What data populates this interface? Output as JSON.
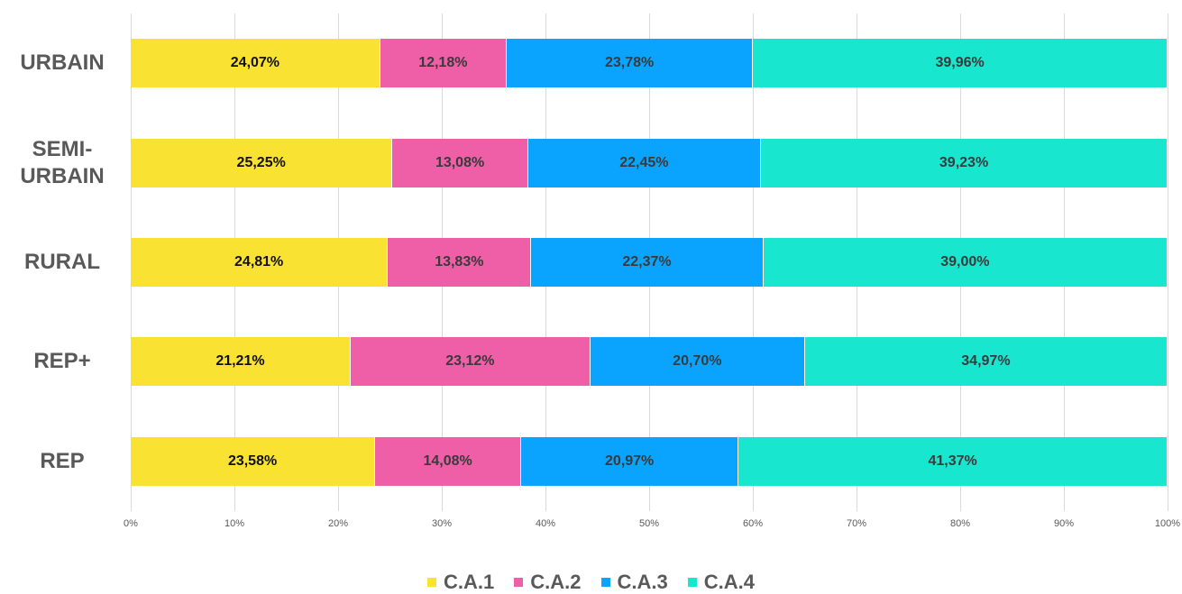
{
  "chart_data": {
    "type": "stacked-bar-horizontal",
    "categories": [
      "URBAIN",
      "SEMI-URBAIN",
      "RURAL",
      "REP+",
      "REP"
    ],
    "series": [
      {
        "name": "C.A.1",
        "color": "#f9e231",
        "values": [
          24.07,
          25.25,
          24.81,
          21.21,
          23.58
        ],
        "value_labels": [
          "24,07%",
          "25,25%",
          "24,81%",
          "21,21%",
          "23,58%"
        ]
      },
      {
        "name": "C.A.2",
        "color": "#ef5fa7",
        "values": [
          12.18,
          13.08,
          13.83,
          23.12,
          14.08
        ],
        "value_labels": [
          "12,18%",
          "13,08%",
          "13,83%",
          "23,12%",
          "14,08%"
        ]
      },
      {
        "name": "C.A.3",
        "color": "#0aa4ff",
        "values": [
          23.78,
          22.45,
          22.37,
          20.7,
          20.97
        ],
        "value_labels": [
          "23,78%",
          "22,45%",
          "22,37%",
          "20,70%",
          "20,97%"
        ]
      },
      {
        "name": "C.A.4",
        "color": "#19e6cf",
        "values": [
          39.96,
          39.23,
          39.0,
          34.97,
          41.37
        ],
        "value_labels": [
          "39,96%",
          "39,23%",
          "39,00%",
          "34,97%",
          "41,37%"
        ]
      }
    ],
    "xlim": [
      0,
      100
    ],
    "xticks": [
      {
        "value": 0,
        "label": "0%"
      },
      {
        "value": 10,
        "label": "10%"
      },
      {
        "value": 20,
        "label": "20%"
      },
      {
        "value": 30,
        "label": "30%"
      },
      {
        "value": 40,
        "label": "40%"
      },
      {
        "value": 50,
        "label": "50%"
      },
      {
        "value": 60,
        "label": "60%"
      },
      {
        "value": 70,
        "label": "70%"
      },
      {
        "value": 80,
        "label": "80%"
      },
      {
        "value": 90,
        "label": "90%"
      },
      {
        "value": 100,
        "label": "100%"
      }
    ],
    "grid": true,
    "legend": "bottom"
  }
}
